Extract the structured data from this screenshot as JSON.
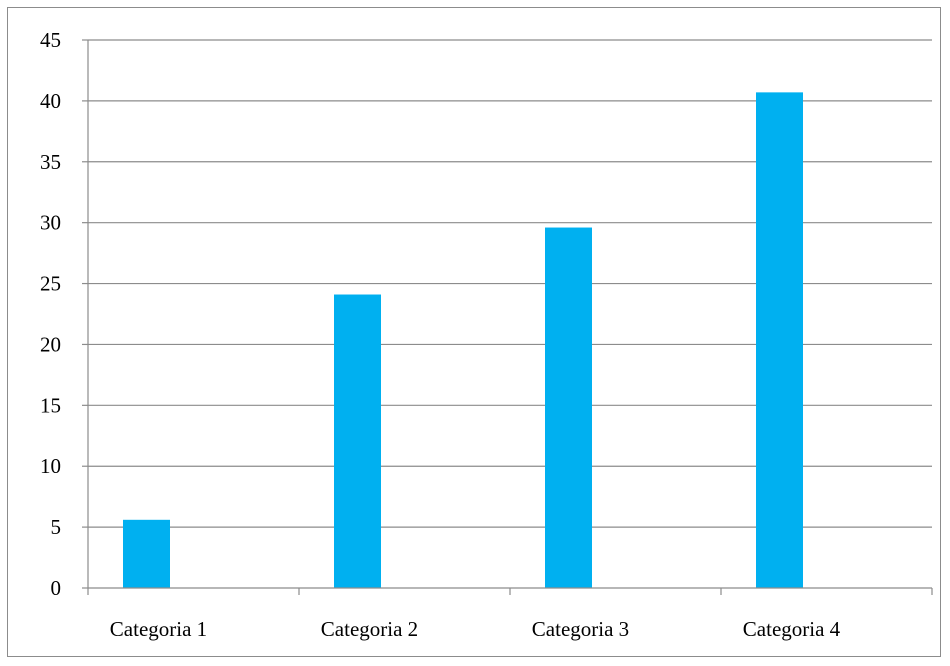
{
  "chart_data": {
    "type": "bar",
    "title": "",
    "xlabel": "",
    "ylabel": "",
    "categories": [
      "Categoria 1",
      "Categoria 2",
      "Categoria 3",
      "Categoria 4"
    ],
    "series": [
      {
        "values": [
          5.6,
          24.1,
          29.6,
          40.7
        ]
      }
    ],
    "ylim": [
      0,
      45
    ],
    "yticks": [
      0,
      5,
      10,
      15,
      20,
      25,
      30,
      35,
      40,
      45
    ],
    "grid": true,
    "legend": "none",
    "colors": {
      "bar": "#00B0F0",
      "grid": "#8c8c8c",
      "axis": "#8c8c8c"
    }
  }
}
